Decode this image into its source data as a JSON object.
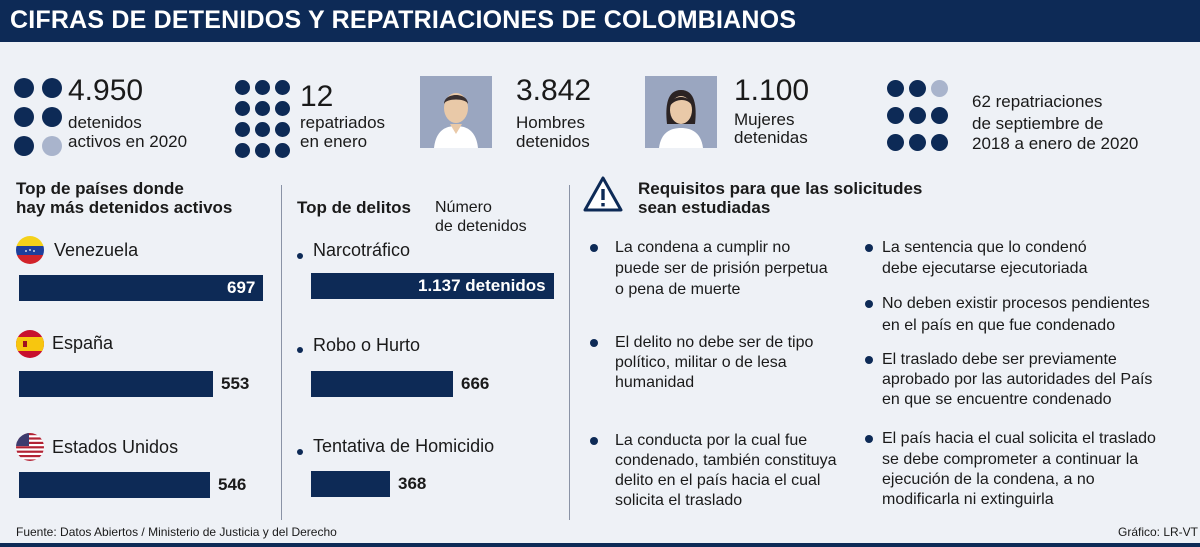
{
  "title": "CIFRAS DE DETENIDOS Y REPATRIACIONES DE COLOMBIANOS",
  "stats": [
    {
      "value": "4.950",
      "label_lines": [
        "detenidos",
        "activos en 2020"
      ]
    },
    {
      "value": "12",
      "label_lines": [
        "repatriados",
        "en enero"
      ]
    },
    {
      "value": "3.842",
      "label_lines": [
        "Hombres",
        "detenidos"
      ],
      "icon": "man-icon"
    },
    {
      "value": "1.100",
      "label_lines": [
        "Mujeres",
        "detenidas"
      ],
      "icon": "woman-icon"
    },
    {
      "value": "",
      "label_lines": [
        "62 repatriaciones",
        "de septiembre de",
        "2018 a enero de 2020"
      ]
    }
  ],
  "countries": {
    "title_lines": [
      "Top de países donde",
      "hay más detenidos activos"
    ],
    "items": [
      {
        "name": "Venezuela",
        "value": "697",
        "amount": 697,
        "flag": "venezuela-flag-icon"
      },
      {
        "name": "España",
        "value": "553",
        "amount": 553,
        "flag": "spain-flag-icon"
      },
      {
        "name": "Estados Unidos",
        "value": "546",
        "amount": 546,
        "flag": "usa-flag-icon"
      }
    ]
  },
  "crimes": {
    "title": "Top de delitos",
    "subtitle_lines": [
      "Número",
      "de detenidos"
    ],
    "items": [
      {
        "name": "Narcotráfico",
        "value": "1.137 detenidos",
        "amount": 1137
      },
      {
        "name": "Robo o Hurto",
        "value": "666",
        "amount": 666
      },
      {
        "name": "Tentativa de Homicidio",
        "value": "368",
        "amount": 368
      }
    ]
  },
  "requirements": {
    "title_lines": [
      "Requisitos para que las solicitudes",
      "sean estudiadas"
    ],
    "icon": "warning-icon",
    "left": [
      [
        "La condena a cumplir no",
        "puede ser de prisión perpetua",
        "o pena de muerte"
      ],
      [
        "El delito no debe ser de tipo",
        "político, militar o de lesa",
        "humanidad"
      ],
      [
        "La conducta por la cual fue",
        "condenado, también constituya",
        "delito en el país hacia el cual",
        "solicita el traslado"
      ]
    ],
    "right": [
      [
        "La sentencia que lo condenó",
        "debe ejecutarse ejecutoriada"
      ],
      [
        "No deben existir procesos pendientes",
        "en el país en que fue condenado"
      ],
      [
        "El traslado debe ser previamente",
        "aprobado por las autoridades del País",
        "en que se encuentre condenado"
      ],
      [
        "El país hacia el cual solicita el traslado",
        "se debe comprometer a continuar la",
        "ejecución de la condena, a no",
        "modificarla ni extinguirla"
      ]
    ]
  },
  "footer": {
    "source": "Fuente: Datos Abiertos / Ministerio de Justicia y del Derecho",
    "credit": "Gráfico: LR-VT"
  },
  "colors": {
    "navy": "#0d2a56",
    "light_dot": "#a9b4cc",
    "background": "#eef1f6"
  }
}
